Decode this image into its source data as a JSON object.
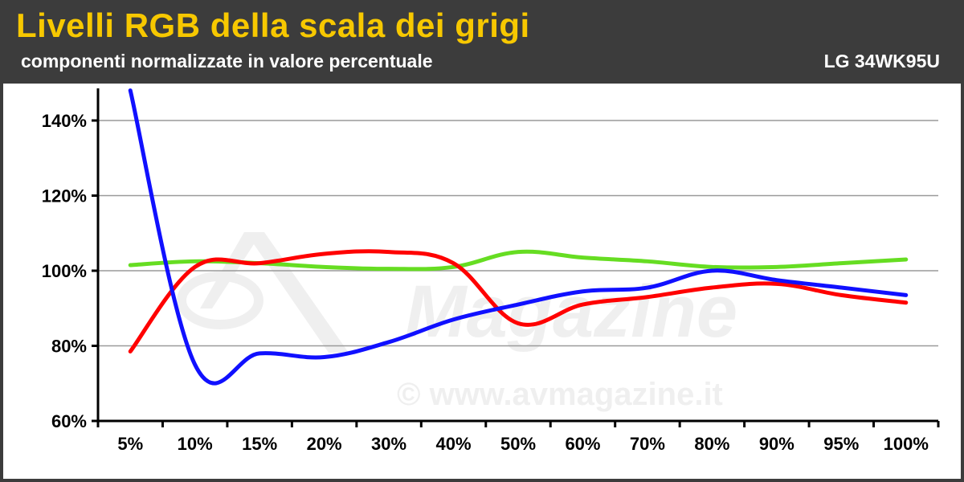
{
  "header": {
    "title": "Livelli RGB della scala dei grigi",
    "subtitle": "componenti normalizzate in valore percentuale",
    "model": "LG 34WK95U"
  },
  "watermark": {
    "logo_text": "AV Magazine",
    "copyright": "© www.avmagazine.it"
  },
  "colors": {
    "header_bg": "#3c3c3c",
    "title": "#f7c800",
    "red": "#ff0000",
    "green": "#66dd22",
    "blue": "#1010ff"
  },
  "chart_data": {
    "type": "line",
    "categories": [
      "5%",
      "10%",
      "15%",
      "20%",
      "30%",
      "40%",
      "50%",
      "60%",
      "70%",
      "80%",
      "90%",
      "95%",
      "100%"
    ],
    "ylim": [
      60,
      145
    ],
    "yticks": [
      60,
      80,
      100,
      120,
      140
    ],
    "ytick_labels": [
      "60%",
      "80%",
      "100%",
      "120%",
      "140%"
    ],
    "grid": true,
    "series": [
      {
        "color": "#66dd22",
        "values": [
          101.5,
          102.5,
          102,
          101,
          100.5,
          101,
          105,
          103.5,
          102.5,
          101,
          101,
          102,
          103
        ]
      },
      {
        "color": "#ff0000",
        "values": [
          78.5,
          101,
          102,
          104.5,
          105,
          102,
          86,
          91,
          93,
          95.5,
          96.5,
          93.5,
          91.5
        ]
      },
      {
        "color": "#1010ff",
        "values": [
          148,
          75,
          78,
          77,
          81,
          87,
          91,
          94.5,
          95.5,
          100,
          97.5,
          95.5,
          93.5
        ]
      }
    ]
  }
}
